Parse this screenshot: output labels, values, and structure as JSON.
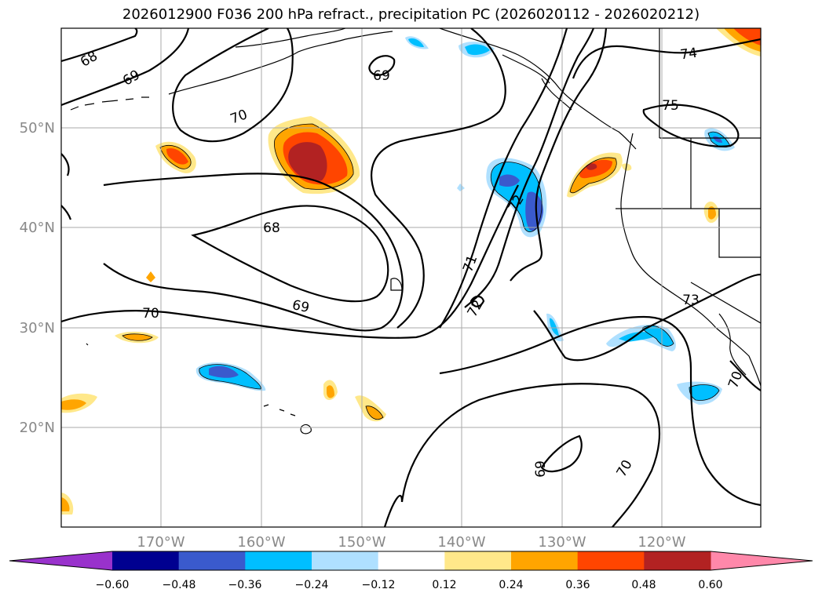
{
  "title": "2026012900 F036 200 hPa refract., precipitation PC (2026020112 - 2026020212)",
  "lon_ticks": [
    {
      "lon": -170,
      "label": "170°W"
    },
    {
      "lon": -160,
      "label": "160°W"
    },
    {
      "lon": -150,
      "label": "150°W"
    },
    {
      "lon": -140,
      "label": "140°W"
    },
    {
      "lon": -130,
      "label": "130°W"
    },
    {
      "lon": -120,
      "label": "120°W"
    }
  ],
  "lat_ticks": [
    {
      "lat": 50,
      "label": "50°N"
    },
    {
      "lat": 40,
      "label": "40°N"
    },
    {
      "lat": 30,
      "label": "30°N"
    },
    {
      "lat": 20,
      "label": "20°N"
    }
  ],
  "contour_labels": [
    "68",
    "69",
    "70",
    "69",
    "68",
    "70",
    "69",
    "71",
    "72",
    "72",
    "74",
    "75",
    "73",
    "70",
    "69",
    "70"
  ],
  "colorbar": {
    "under_color": "#9932cc",
    "over_color": "#ff88aa",
    "colors": [
      "#000090",
      "#3a5acd",
      "#00bfff",
      "#afe0ff",
      "#ffffff",
      "#ffe88a",
      "#ffa500",
      "#ff4500",
      "#b22222"
    ],
    "tick_labels": [
      "−0.60",
      "−0.48",
      "−0.36",
      "−0.24",
      "−0.12",
      "0.12",
      "0.24",
      "0.36",
      "0.48",
      "0.60"
    ]
  }
}
